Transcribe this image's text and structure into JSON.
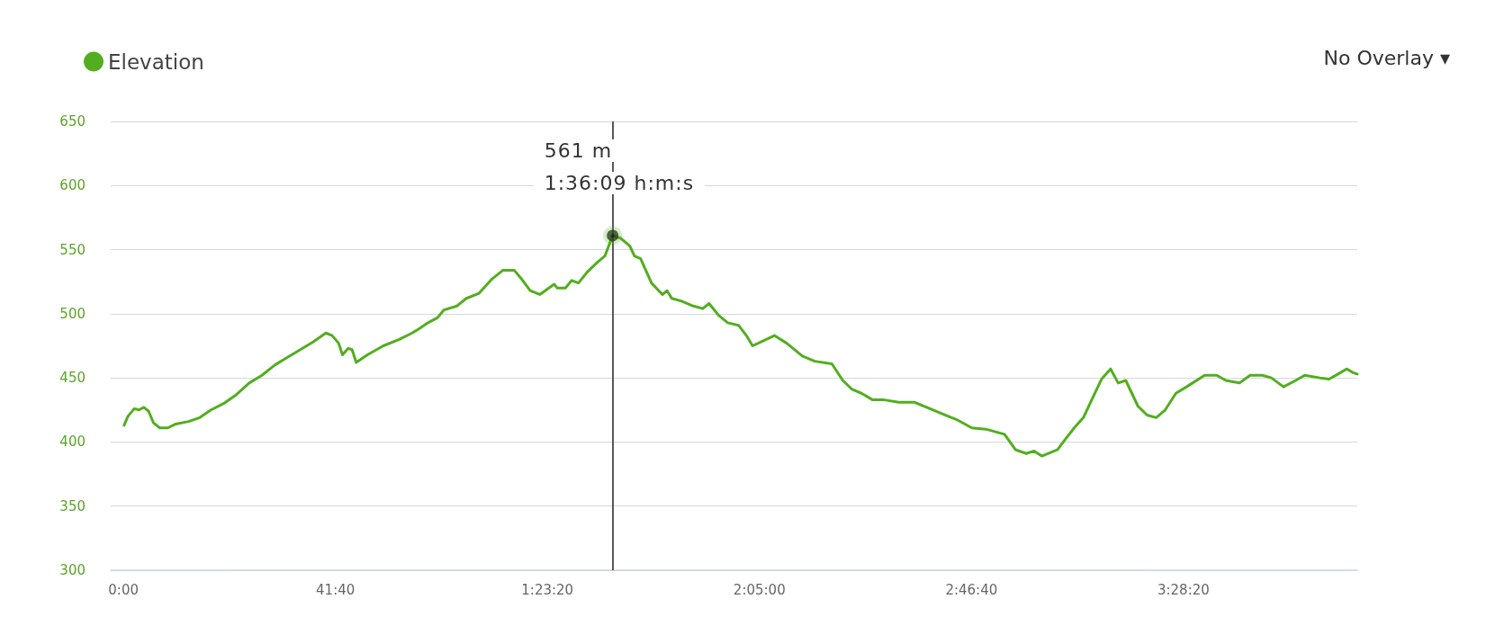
{
  "chart_data": {
    "type": "line",
    "legend": "top left",
    "grid": "y",
    "marker": "none",
    "line_style": "solid",
    "xlim": [
      -150,
      14550
    ],
    "ylim": [
      300,
      650
    ],
    "xticks": [
      {
        "value": 0,
        "label": "0:00"
      },
      {
        "value": 2500,
        "label": "41:40"
      },
      {
        "value": 5000,
        "label": "1:23:20"
      },
      {
        "value": 7500,
        "label": "2:05:00"
      },
      {
        "value": 10000,
        "label": "2:46:40"
      },
      {
        "value": 12500,
        "label": "3:28:20"
      }
    ],
    "yticks": [
      300,
      350,
      400,
      450,
      500,
      550,
      600,
      650
    ],
    "ref_lines": [
      {
        "axis": "x",
        "value": 5769,
        "color": "#222222"
      }
    ],
    "annotations": [
      "561 m",
      "1:36:09 h:m:s",
      "No Overlay ▾"
    ],
    "series": [
      {
        "name": "Elevation",
        "color": "#52ae1f",
        "x": [
          8,
          53,
          128,
          184,
          241,
          297,
          354,
          429,
          523,
          617,
          768,
          900,
          1032,
          1182,
          1333,
          1483,
          1634,
          1785,
          1935,
          2086,
          2236,
          2387,
          2462,
          2538,
          2583,
          2651,
          2696,
          2745,
          2877,
          3065,
          3253,
          3404,
          3479,
          3592,
          3705,
          3780,
          3931,
          4044,
          4194,
          4345,
          4476,
          4608,
          4684,
          4797,
          4910,
          5079,
          5117,
          5211,
          5286,
          5366,
          5476,
          5586,
          5677,
          5769,
          5861,
          5971,
          6026,
          6099,
          6227,
          6356,
          6411,
          6466,
          6576,
          6722,
          6832,
          6906,
          7016,
          7126,
          7254,
          7346,
          7419,
          7547,
          7676,
          7822,
          8006,
          8152,
          8354,
          8483,
          8593,
          8703,
          8831,
          8959,
          9143,
          9326,
          9473,
          9656,
          9840,
          10005,
          10170,
          10390,
          10519,
          10647,
          10738,
          10830,
          11016,
          11105,
          11212,
          11320,
          11427,
          11534,
          11641,
          11731,
          11820,
          11963,
          12071,
          12178,
          12285,
          12411,
          12536,
          12750,
          12893,
          13000,
          13161,
          13286,
          13430,
          13537,
          13680,
          13823,
          13930,
          14110,
          14217,
          14324,
          14424,
          14503,
          14550
        ],
        "values": [
          413,
          420,
          426,
          425,
          427,
          424,
          415,
          411,
          411,
          414,
          416,
          419,
          425,
          430,
          437,
          446,
          452,
          460,
          466,
          472,
          478,
          485,
          483,
          477,
          468,
          473,
          472,
          462,
          468,
          475,
          480,
          485,
          488,
          493,
          497,
          503,
          506,
          512,
          516,
          527,
          534,
          534,
          528,
          518,
          515,
          523,
          520,
          520,
          526,
          524,
          533,
          540,
          545,
          561,
          559,
          553,
          545,
          543,
          524,
          515,
          518,
          512,
          510,
          506,
          504,
          508,
          499,
          493,
          491,
          483,
          475,
          479,
          483,
          477,
          467,
          463,
          461,
          448,
          441,
          438,
          433,
          433,
          431,
          431,
          427,
          422,
          417,
          411,
          410,
          406,
          394,
          391,
          393,
          389,
          394,
          402,
          411,
          419,
          434,
          449,
          457,
          446,
          448,
          428,
          421,
          419,
          425,
          438,
          443,
          452,
          452,
          448,
          446,
          452,
          452,
          450,
          443,
          448,
          452,
          450,
          449,
          453,
          457,
          454,
          453
        ]
      },
      {
        "type": "scatter",
        "marker": "circle",
        "color": "#222222",
        "x": [
          5769
        ],
        "values": [
          561
        ]
      }
    ]
  }
}
